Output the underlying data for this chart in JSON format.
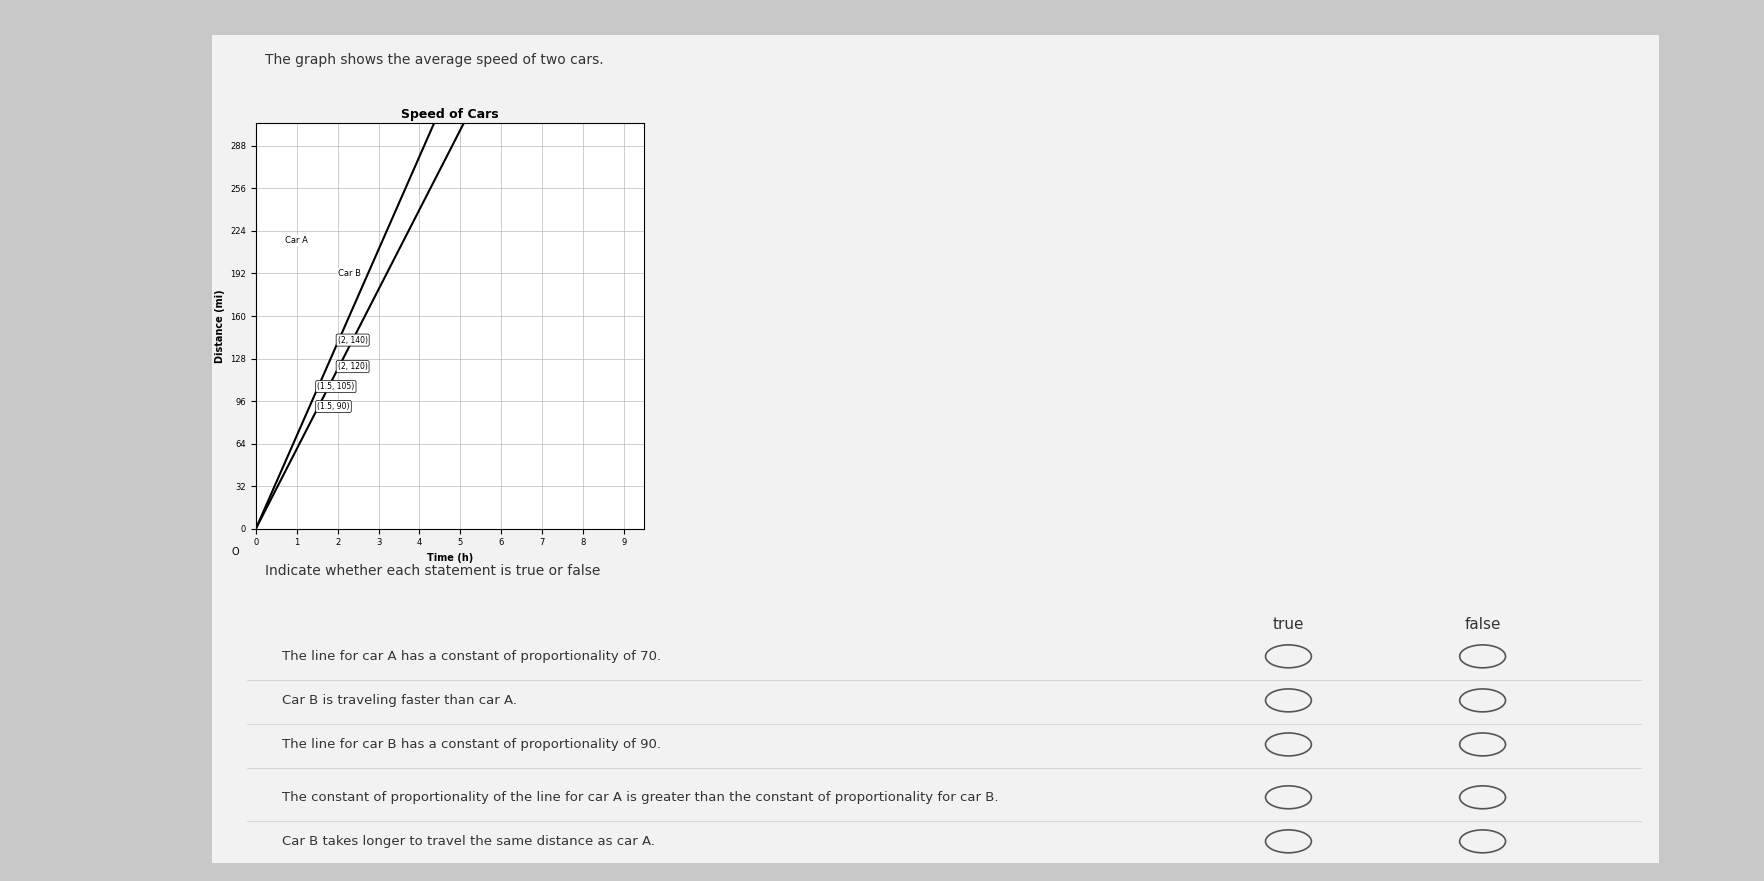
{
  "title": "Speed of Cars",
  "xlabel": "Time (h)",
  "ylabel": "Distance (mi)",
  "y_ticks": [
    0,
    32,
    64,
    96,
    128,
    160,
    192,
    224,
    256,
    288
  ],
  "x_ticks": [
    0,
    1,
    2,
    3,
    4,
    5,
    6,
    7,
    8,
    9
  ],
  "xlim": [
    0,
    9.5
  ],
  "ylim": [
    0,
    305
  ],
  "car_a_slope": 70,
  "car_b_slope": 60,
  "bg_color": "#f2f2f2",
  "page_bg": "#c8c8c8",
  "statements": [
    "The line for car A has a constant of proportionality of 70.",
    "Car B is traveling faster than car A.",
    "The line for car B has a constant of proportionality of 90.",
    "The constant of proportionality of the line for car A is greater than the constant of proportionality for car B.",
    "Car B takes longer to travel the same distance as car A."
  ],
  "header_text": "The graph shows the average speed of two cars.",
  "indicate_text": "Indicate whether each statement is true or false",
  "true_label": "true",
  "false_label": "false"
}
